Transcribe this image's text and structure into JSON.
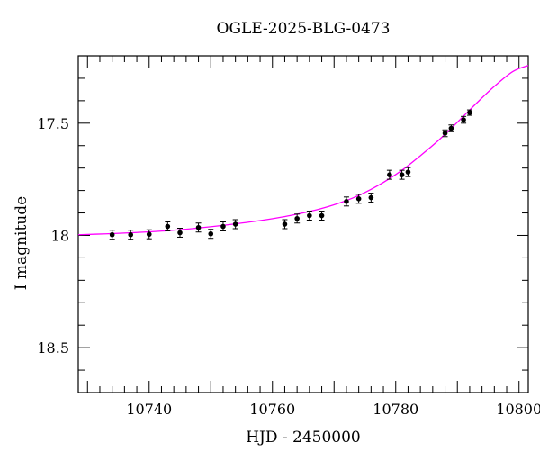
{
  "chart_data": {
    "type": "scatter",
    "title": "OGLE-2025-BLG-0473",
    "xlabel": "HJD - 2450000",
    "ylabel": "I magnitude",
    "xlim": [
      10728.5,
      10801.5
    ],
    "ylim": [
      18.7,
      17.2
    ],
    "y_axis_inverted": true,
    "grid": false,
    "x_ticks": [
      10740,
      10760,
      10780,
      10800
    ],
    "x_tick_labels": [
      "10740",
      "10760",
      "10780",
      "10800"
    ],
    "y_ticks": [
      17.5,
      18,
      18.5
    ],
    "y_tick_labels": [
      "17.5",
      "18",
      "18.5"
    ],
    "colors": {
      "model": "#ff00ff",
      "points": "#000000",
      "axes": "#000000"
    },
    "series": [
      {
        "kind": "points_with_errorbars",
        "x": [
          10734.0,
          10737.0,
          10740.0,
          10743.0,
          10745.0,
          10748.0,
          10750.0,
          10752.0,
          10754.0,
          10762.0,
          10764.0,
          10766.0,
          10768.0,
          10772.0,
          10774.0,
          10776.0,
          10779.0,
          10781.0,
          10782.0,
          10788.0,
          10789.0,
          10791.0,
          10792.0
        ],
        "y": [
          17.997,
          17.997,
          17.995,
          17.96,
          17.988,
          17.965,
          17.993,
          17.96,
          17.95,
          17.95,
          17.925,
          17.912,
          17.912,
          17.849,
          17.837,
          17.832,
          17.73,
          17.73,
          17.718,
          17.545,
          17.523,
          17.485,
          17.453
        ],
        "err": [
          0.02,
          0.02,
          0.02,
          0.02,
          0.02,
          0.02,
          0.02,
          0.02,
          0.02,
          0.02,
          0.02,
          0.02,
          0.02,
          0.02,
          0.02,
          0.02,
          0.02,
          0.02,
          0.02,
          0.015,
          0.015,
          0.015,
          0.012
        ]
      },
      {
        "kind": "model_curve",
        "x": [
          10728.5,
          10733,
          10738,
          10743,
          10748,
          10753,
          10758,
          10763,
          10768,
          10773,
          10777,
          10781,
          10784,
          10787,
          10790,
          10793,
          10796,
          10799,
          10801.5
        ],
        "y": [
          17.997,
          17.993,
          17.987,
          17.979,
          17.967,
          17.952,
          17.934,
          17.911,
          17.88,
          17.834,
          17.78,
          17.71,
          17.645,
          17.575,
          17.496,
          17.414,
          17.336,
          17.27,
          17.243
        ]
      }
    ]
  }
}
